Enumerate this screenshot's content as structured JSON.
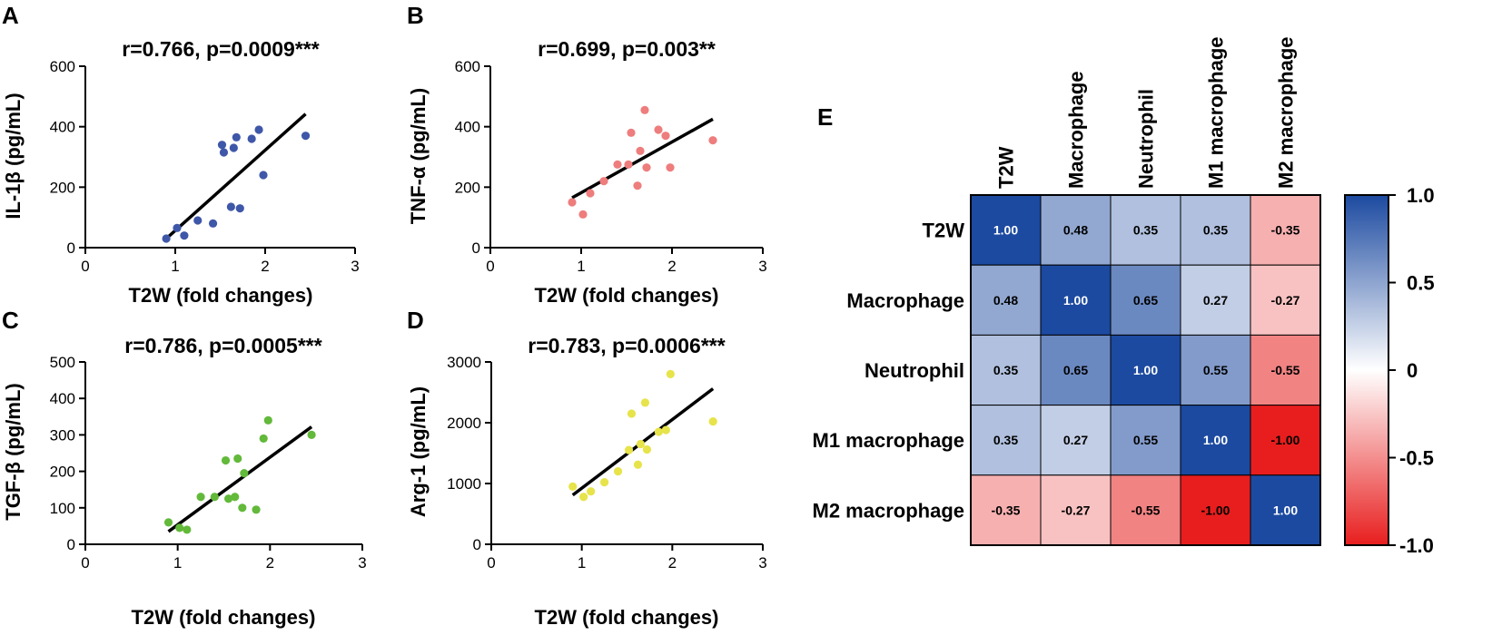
{
  "chart_data": [
    {
      "panel": "A",
      "type": "scatter",
      "title": "r=0.766, p=0.0009***",
      "xlabel": "T2W (fold changes)",
      "ylabel": "IL-1β (pg/mL)",
      "xlim": [
        0,
        3
      ],
      "ylim": [
        0,
        600
      ],
      "xticks": [
        0,
        1,
        2,
        3
      ],
      "yticks": [
        0,
        200,
        400,
        600
      ],
      "color": "#3f57a8",
      "points": [
        [
          0.9,
          30
        ],
        [
          1.02,
          65
        ],
        [
          1.1,
          40
        ],
        [
          1.25,
          90
        ],
        [
          1.42,
          80
        ],
        [
          1.52,
          340
        ],
        [
          1.54,
          315
        ],
        [
          1.62,
          135
        ],
        [
          1.65,
          330
        ],
        [
          1.68,
          365
        ],
        [
          1.72,
          130
        ],
        [
          1.85,
          360
        ],
        [
          1.93,
          390
        ],
        [
          1.98,
          240
        ],
        [
          2.45,
          370
        ]
      ],
      "fit": [
        [
          0.9,
          30
        ],
        [
          2.45,
          442
        ]
      ]
    },
    {
      "panel": "B",
      "type": "scatter",
      "title": "r=0.699, p=0.003**",
      "xlabel": "T2W (fold changes)",
      "ylabel": "TNF-α (pg/mL)",
      "xlim": [
        0,
        3
      ],
      "ylim": [
        0,
        600
      ],
      "xticks": [
        0,
        1,
        2,
        3
      ],
      "yticks": [
        0,
        200,
        400,
        600
      ],
      "color": "#ee7d7d",
      "points": [
        [
          0.9,
          150
        ],
        [
          1.02,
          110
        ],
        [
          1.1,
          180
        ],
        [
          1.25,
          220
        ],
        [
          1.4,
          275
        ],
        [
          1.52,
          275
        ],
        [
          1.55,
          380
        ],
        [
          1.62,
          205
        ],
        [
          1.65,
          320
        ],
        [
          1.7,
          455
        ],
        [
          1.72,
          265
        ],
        [
          1.85,
          390
        ],
        [
          1.93,
          370
        ],
        [
          1.98,
          265
        ],
        [
          2.45,
          355
        ]
      ],
      "fit": [
        [
          0.9,
          165
        ],
        [
          2.45,
          425
        ]
      ]
    },
    {
      "panel": "C",
      "type": "scatter",
      "title": "r=0.786, p=0.0005***",
      "xlabel": "T2W (fold changes)",
      "ylabel": "TGF-β (pg/mL)",
      "xlim": [
        0,
        3
      ],
      "ylim": [
        0,
        500
      ],
      "xticks": [
        0,
        1,
        2,
        3
      ],
      "yticks": [
        0,
        100,
        200,
        300,
        400,
        500
      ],
      "color": "#62b93a",
      "points": [
        [
          0.9,
          60
        ],
        [
          1.02,
          45
        ],
        [
          1.1,
          40
        ],
        [
          1.25,
          130
        ],
        [
          1.4,
          130
        ],
        [
          1.52,
          230
        ],
        [
          1.55,
          125
        ],
        [
          1.62,
          130
        ],
        [
          1.65,
          235
        ],
        [
          1.7,
          100
        ],
        [
          1.72,
          195
        ],
        [
          1.85,
          95
        ],
        [
          1.93,
          290
        ],
        [
          1.98,
          340
        ],
        [
          2.45,
          300
        ]
      ],
      "fit": [
        [
          0.9,
          35
        ],
        [
          2.45,
          322
        ]
      ]
    },
    {
      "panel": "D",
      "type": "scatter",
      "title": "r=0.783, p=0.0006***",
      "xlabel": "T2W (fold changes)",
      "ylabel": "Arg-1 (pg/mL)",
      "xlim": [
        0,
        3
      ],
      "ylim": [
        0,
        3000
      ],
      "xticks": [
        0,
        1,
        2,
        3
      ],
      "yticks": [
        0,
        1000,
        2000,
        3000
      ],
      "color": "#e7e34a",
      "points": [
        [
          0.9,
          950
        ],
        [
          1.02,
          780
        ],
        [
          1.1,
          870
        ],
        [
          1.25,
          1020
        ],
        [
          1.4,
          1200
        ],
        [
          1.52,
          1550
        ],
        [
          1.55,
          2150
        ],
        [
          1.62,
          1310
        ],
        [
          1.65,
          1650
        ],
        [
          1.7,
          2330
        ],
        [
          1.72,
          1560
        ],
        [
          1.85,
          1850
        ],
        [
          1.93,
          1880
        ],
        [
          1.98,
          2800
        ],
        [
          2.45,
          2020
        ]
      ],
      "fit": [
        [
          0.9,
          810
        ],
        [
          2.45,
          2560
        ]
      ]
    },
    {
      "panel": "E",
      "type": "heatmap",
      "labels": [
        "T2W",
        "Macrophage",
        "Neutrophil",
        "M1 macrophage",
        "M2 macrophage"
      ],
      "matrix": [
        [
          1.0,
          0.48,
          0.35,
          0.35,
          -0.35
        ],
        [
          0.48,
          1.0,
          0.65,
          0.27,
          -0.27
        ],
        [
          0.35,
          0.65,
          1.0,
          0.55,
          -0.55
        ],
        [
          0.35,
          0.27,
          0.55,
          1.0,
          -1.0
        ],
        [
          -0.35,
          -0.27,
          -0.55,
          -1.0,
          1.0
        ]
      ],
      "cell_labels": [
        [
          "1.00",
          "0.48",
          "0.35",
          "0.35",
          "-0.35"
        ],
        [
          "0.48",
          "1.00",
          "0.65",
          "0.27",
          "-0.27"
        ],
        [
          "0.35",
          "0.65",
          "1.00",
          "0.55",
          "-0.55"
        ],
        [
          "0.35",
          "0.27",
          "0.55",
          "1.00",
          "-1.00"
        ],
        [
          "-0.35",
          "-0.27",
          "-0.55",
          "-1.00",
          "1.00"
        ]
      ],
      "colorbar": {
        "range": [
          -1.0,
          1.0
        ],
        "tick_labels": [
          "1.0",
          "0.5",
          "0",
          "-0.5",
          "-1.0"
        ],
        "tick_values": [
          1.0,
          0.5,
          0,
          -0.5,
          -1.0
        ],
        "colors": {
          "high": "#1c4aa0",
          "mid": "#ffffff",
          "low": "#e81e1e"
        }
      }
    }
  ]
}
